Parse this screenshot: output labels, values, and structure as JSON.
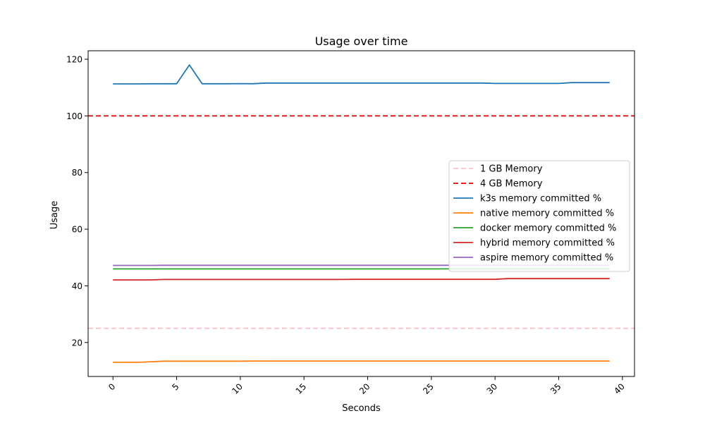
{
  "chart_data": {
    "type": "line",
    "title": "Usage over time",
    "xlabel": "Seconds",
    "ylabel": "Usage",
    "xlim": [
      -1.95,
      40.95
    ],
    "ylim": [
      8,
      123
    ],
    "xticks": [
      0,
      5,
      10,
      15,
      20,
      25,
      30,
      35,
      40
    ],
    "xtick_labels": [
      "0",
      "5",
      "10",
      "15",
      "20",
      "25",
      "30",
      "35",
      "40"
    ],
    "yticks": [
      20,
      40,
      60,
      80,
      100,
      120
    ],
    "ytick_labels": [
      "20",
      "40",
      "60",
      "80",
      "100",
      "120"
    ],
    "grid": false,
    "legend_position": "center-right",
    "reference_lines": [
      {
        "name": "1 GB Memory",
        "y": 25,
        "color": "#ffc0cb",
        "dash": true
      },
      {
        "name": "4 GB Memory",
        "y": 100,
        "color": "#dd0000",
        "dash": true
      }
    ],
    "x": [
      0,
      1,
      2,
      3,
      4,
      5,
      6,
      7,
      8,
      9,
      10,
      11,
      12,
      13,
      14,
      15,
      16,
      17,
      18,
      19,
      20,
      21,
      22,
      23,
      24,
      25,
      26,
      27,
      28,
      29,
      30,
      31,
      32,
      33,
      34,
      35,
      36,
      37,
      38,
      39
    ],
    "series": [
      {
        "name": "k3s memory committed %",
        "color": "#1f77b4",
        "values": [
          111.3,
          111.3,
          111.3,
          111.35,
          111.35,
          111.35,
          118.0,
          111.35,
          111.35,
          111.35,
          111.4,
          111.35,
          111.6,
          111.6,
          111.6,
          111.6,
          111.6,
          111.6,
          111.6,
          111.6,
          111.6,
          111.6,
          111.6,
          111.6,
          111.6,
          111.6,
          111.6,
          111.6,
          111.6,
          111.6,
          111.45,
          111.45,
          111.45,
          111.45,
          111.45,
          111.45,
          111.75,
          111.75,
          111.75,
          111.75
        ]
      },
      {
        "name": "native memory committed %",
        "color": "#ff7f0e",
        "values": [
          13.0,
          13.0,
          13.0,
          13.2,
          13.4,
          13.4,
          13.4,
          13.4,
          13.4,
          13.4,
          13.4,
          13.45,
          13.45,
          13.45,
          13.45,
          13.45,
          13.45,
          13.45,
          13.45,
          13.45,
          13.45,
          13.45,
          13.45,
          13.45,
          13.45,
          13.45,
          13.45,
          13.45,
          13.45,
          13.45,
          13.45,
          13.45,
          13.45,
          13.45,
          13.45,
          13.45,
          13.45,
          13.45,
          13.45,
          13.45
        ]
      },
      {
        "name": "docker memory committed %",
        "color": "#2ca02c",
        "values": [
          46.0,
          46.0,
          46.0,
          46.0,
          46.0,
          46.0,
          46.0,
          46.0,
          46.0,
          46.0,
          46.0,
          46.0,
          46.0,
          46.0,
          46.0,
          46.0,
          46.0,
          46.0,
          46.0,
          46.0,
          46.0,
          46.0,
          46.0,
          46.0,
          46.0,
          46.0,
          46.0,
          46.0,
          46.0,
          46.0,
          46.0,
          46.0,
          46.0,
          46.0,
          46.0,
          46.0,
          46.0,
          46.0,
          46.0,
          46.0
        ]
      },
      {
        "name": "hybrid memory committed %",
        "color": "#d62728",
        "values": [
          42.1,
          42.1,
          42.1,
          42.1,
          42.25,
          42.25,
          42.25,
          42.25,
          42.25,
          42.25,
          42.25,
          42.25,
          42.25,
          42.25,
          42.25,
          42.25,
          42.25,
          42.25,
          42.25,
          42.3,
          42.3,
          42.3,
          42.3,
          42.3,
          42.3,
          42.3,
          42.3,
          42.3,
          42.3,
          42.3,
          42.3,
          42.55,
          42.55,
          42.55,
          42.55,
          42.55,
          42.55,
          42.55,
          42.55,
          42.55
        ]
      },
      {
        "name": "aspire  memory committed %",
        "color": "#9467bd",
        "values": [
          47.2,
          47.2,
          47.2,
          47.2,
          47.25,
          47.25,
          47.25,
          47.25,
          47.25,
          47.25,
          47.25,
          47.25,
          47.25,
          47.25,
          47.25,
          47.25,
          47.25,
          47.25,
          47.25,
          47.25,
          47.25,
          47.25,
          47.25,
          47.25,
          47.25,
          47.25,
          47.25,
          47.25,
          47.25,
          47.25,
          47.25,
          47.25,
          47.25,
          47.25,
          47.25,
          47.25,
          47.25,
          47.25,
          47.25,
          47.25
        ]
      }
    ]
  }
}
